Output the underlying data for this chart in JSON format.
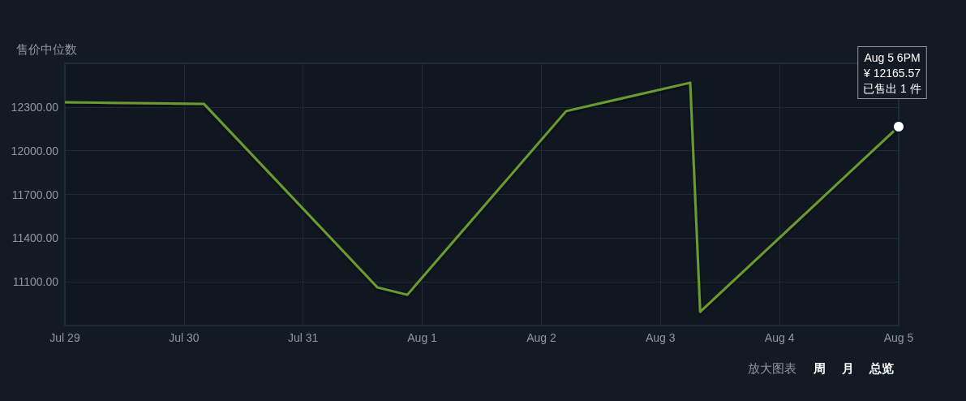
{
  "chart_data": {
    "type": "line",
    "ylabel": "售价中位数",
    "x": [
      "--07-29T00:00",
      "--07-30T04:00",
      "--07-31T15:00",
      "--07-31T21:00",
      "--08-02T05:00",
      "--08-03T06:00",
      "--08-03T08:00",
      "--08-05T00:00"
    ],
    "series": [
      {
        "color": "#6a9a33",
        "values": [
          12333,
          12322,
          11061,
          11011,
          12272,
          12467,
          10894,
          12165.57
        ]
      }
    ],
    "xlim": [
      "--07-29T00:00",
      "--08-05T00:00"
    ],
    "xticks": [
      {
        "value": "--07-29",
        "label": "Jul 29"
      },
      {
        "value": "--07-30",
        "label": "Jul 30"
      },
      {
        "value": "--07-31",
        "label": "Jul 31"
      },
      {
        "value": "--08-01",
        "label": "Aug 1"
      },
      {
        "value": "--08-02",
        "label": "Aug 2"
      },
      {
        "value": "--08-03",
        "label": "Aug 3"
      },
      {
        "value": "--08-04",
        "label": "Aug 4"
      },
      {
        "value": "--08-05",
        "label": "Aug 5"
      }
    ],
    "ylim": [
      10800,
      12600
    ],
    "yticks": [
      {
        "value": 11100,
        "label": "11100.00"
      },
      {
        "value": 11400,
        "label": "11400.00"
      },
      {
        "value": 11700,
        "label": "11700.00"
      },
      {
        "value": 12000,
        "label": "12000.00"
      },
      {
        "value": 12300,
        "label": "12300.00"
      }
    ],
    "grid": true,
    "marker": "none",
    "line_style": "solid",
    "annotations": [
      {
        "text": "Aug 5 6PM\n¥ 12165.57\n已售出 1 件",
        "x": "--08-05T00:00",
        "y": 12165.57
      },
      "放大图表",
      "周",
      "月",
      "总览"
    ]
  }
}
